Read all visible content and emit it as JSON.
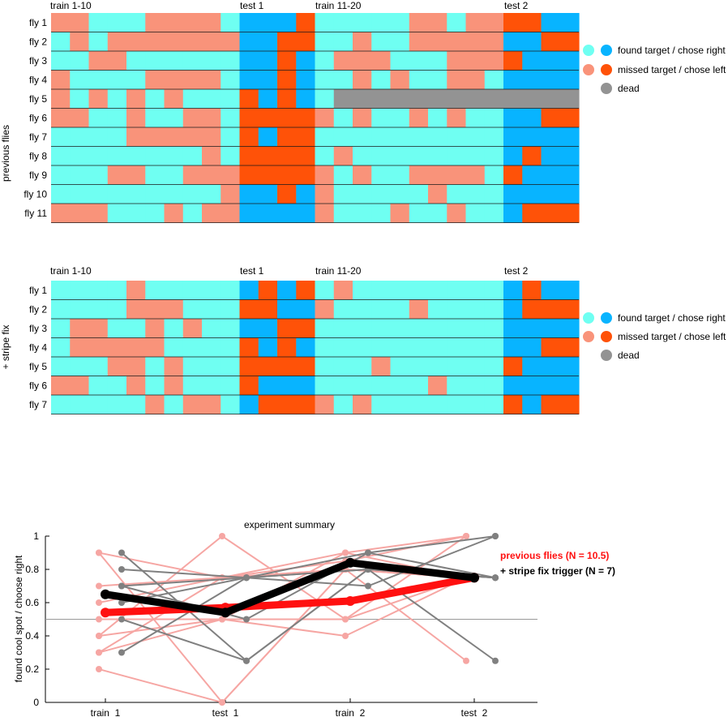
{
  "colors": {
    "found_train": "#6ffff2",
    "missed_train": "#f9937a",
    "found_test": "#08b4ff",
    "missed_test": "#ff5208",
    "dead": "#939393",
    "prev_light": "#f6a6a3",
    "prev_mean": "#ff1010",
    "stripe_light": "#808080",
    "stripe_mean": "#000000",
    "chance_line": "#999999"
  },
  "legend": {
    "found": "found target / chose right",
    "missed": "missed target / chose left",
    "dead": "dead"
  },
  "section_labels": [
    "train 1-10",
    "test 1",
    "train 11-20",
    "test 2"
  ],
  "panels": [
    {
      "group_label": "previous flies",
      "fly_labels": [
        "fly 1",
        "fly 2",
        "fly 3",
        "fly 4",
        "fly 5",
        "fly 6",
        "fly 7",
        "fly 8",
        "fly 9",
        "fly 10",
        "fly 11"
      ],
      "rows": [
        "001110000111101111100100001",
        "101000000011001101100000110",
        "110011111111011000111000011",
        "011110000111011101011001111",
        "010101011101011222222222222",
        "001101100100000101101011110",
        "111100000101001111111111111",
        "111111110100001011111111101",
        "111001100000000101100001011",
        "111111111011010111110111111",
        "000111010011110111011011100"
      ]
    },
    {
      "group_label": "+ stripe fix",
      "fly_labels": [
        "fly 1",
        "fly 2",
        "fly 3",
        "fly 4",
        "fly 5",
        "fly 6",
        "fly 7"
      ],
      "rows": [
        "111101111110101011111111101",
        "111100011100110111101111100",
        "100110101111001111111111111",
        "100000111101011111111111110",
        "111001011100001110111111011",
        "001101011101111111110111111",
        "111110100110000101111111010"
      ]
    }
  ],
  "chart_data": {
    "type": "line",
    "title": "experiment summary",
    "xlabel": "",
    "ylabel": "found cool spot / choose right",
    "categories": [
      "train_1",
      "test_1",
      "train_2",
      "test_2"
    ],
    "ylim": [
      0,
      1
    ],
    "yticks": [
      "0",
      "0.2",
      "0.4",
      "0.6",
      "0.8",
      "1"
    ],
    "chance_level": 0.5,
    "grid": false,
    "legend_position": "right",
    "series": [
      {
        "name": "previous flies (N = 10.5)",
        "role": "mean",
        "group": "prev",
        "values": [
          0.54,
          0.57,
          0.61,
          0.75
        ]
      },
      {
        "name": "+ stripe fix trigger  (N = 7)",
        "role": "mean",
        "group": "stripe",
        "values": [
          0.65,
          0.54,
          0.84,
          0.75
        ]
      }
    ],
    "individual_prev": [
      [
        0.9,
        0.75,
        0.85,
        1.0
      ],
      [
        0.7,
        0.75,
        0.8,
        0.75
      ],
      [
        0.6,
        0.75,
        0.8,
        0.75
      ],
      [
        0.5,
        0.5,
        0.9,
        1.0
      ],
      [
        0.4,
        1.0,
        0.5,
        0.75
      ],
      [
        0.4,
        0.5,
        0.5,
        1.0
      ],
      [
        0.3,
        0.5,
        0.4,
        0.75
      ],
      [
        0.2,
        0.0,
        0.8,
        0.25
      ],
      [
        0.9,
        0.0,
        0.8,
        0.75
      ],
      [
        0.3,
        0.75,
        0.9,
        0.75
      ]
    ],
    "individual_stripe": [
      [
        0.9,
        0.25,
        0.8,
        0.25
      ],
      [
        0.8,
        0.75,
        0.7,
        1.0
      ],
      [
        0.7,
        0.75,
        0.8,
        0.75
      ],
      [
        0.7,
        0.5,
        0.9,
        0.75
      ],
      [
        0.6,
        0.75,
        0.9,
        1.0
      ],
      [
        0.5,
        0.25,
        0.8,
        0.75
      ],
      [
        0.3,
        0.75,
        0.8,
        0.75
      ]
    ]
  },
  "legend_summary": {
    "prev": "previous flies (N = 10.5)",
    "stripe": "+ stripe fix trigger  (N = 7)"
  }
}
